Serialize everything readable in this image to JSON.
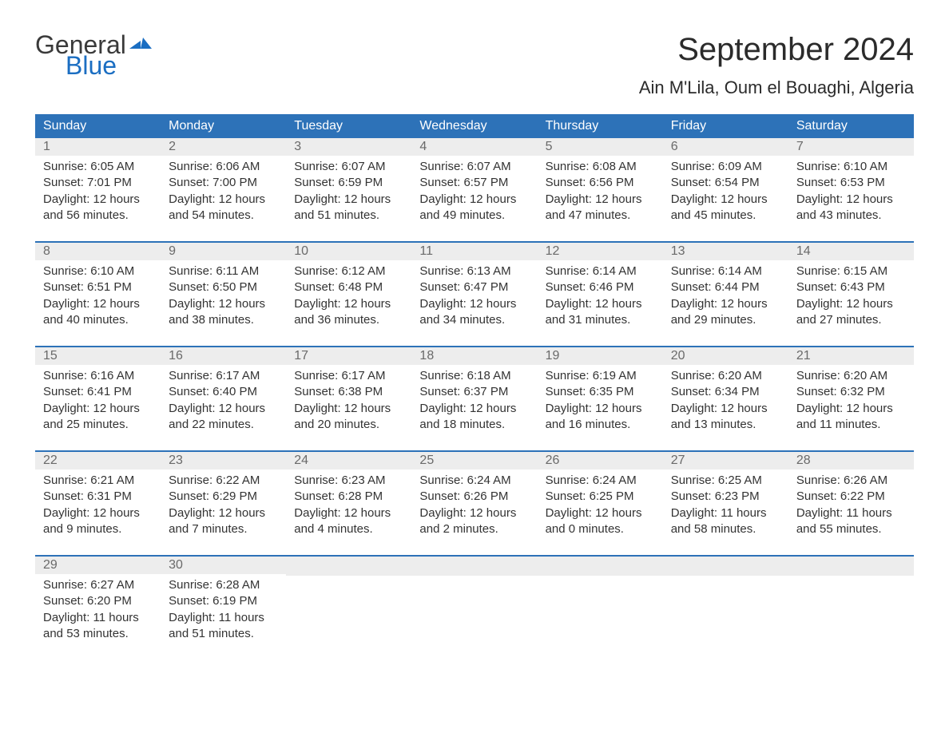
{
  "brand": {
    "word1": "General",
    "word2": "Blue",
    "color1": "#3a3a3a",
    "color2": "#1b6ec2"
  },
  "title": "September 2024",
  "location": "Ain M'Lila, Oum el Bouaghi, Algeria",
  "style": {
    "header_bg": "#2d72b8",
    "header_text": "#ffffff",
    "daynum_bg": "#ededed",
    "daynum_text": "#6a6a6a",
    "body_text": "#333333",
    "separator": "#2d72b8",
    "page_bg": "#ffffff",
    "font_family": "Arial",
    "title_fontsize": 40,
    "location_fontsize": 22,
    "header_fontsize": 16,
    "body_fontsize": 15
  },
  "days_of_week": [
    "Sunday",
    "Monday",
    "Tuesday",
    "Wednesday",
    "Thursday",
    "Friday",
    "Saturday"
  ],
  "weeks": [
    [
      {
        "num": "1",
        "sunrise": "Sunrise: 6:05 AM",
        "sunset": "Sunset: 7:01 PM",
        "day1": "Daylight: 12 hours",
        "day2": "and 56 minutes."
      },
      {
        "num": "2",
        "sunrise": "Sunrise: 6:06 AM",
        "sunset": "Sunset: 7:00 PM",
        "day1": "Daylight: 12 hours",
        "day2": "and 54 minutes."
      },
      {
        "num": "3",
        "sunrise": "Sunrise: 6:07 AM",
        "sunset": "Sunset: 6:59 PM",
        "day1": "Daylight: 12 hours",
        "day2": "and 51 minutes."
      },
      {
        "num": "4",
        "sunrise": "Sunrise: 6:07 AM",
        "sunset": "Sunset: 6:57 PM",
        "day1": "Daylight: 12 hours",
        "day2": "and 49 minutes."
      },
      {
        "num": "5",
        "sunrise": "Sunrise: 6:08 AM",
        "sunset": "Sunset: 6:56 PM",
        "day1": "Daylight: 12 hours",
        "day2": "and 47 minutes."
      },
      {
        "num": "6",
        "sunrise": "Sunrise: 6:09 AM",
        "sunset": "Sunset: 6:54 PM",
        "day1": "Daylight: 12 hours",
        "day2": "and 45 minutes."
      },
      {
        "num": "7",
        "sunrise": "Sunrise: 6:10 AM",
        "sunset": "Sunset: 6:53 PM",
        "day1": "Daylight: 12 hours",
        "day2": "and 43 minutes."
      }
    ],
    [
      {
        "num": "8",
        "sunrise": "Sunrise: 6:10 AM",
        "sunset": "Sunset: 6:51 PM",
        "day1": "Daylight: 12 hours",
        "day2": "and 40 minutes."
      },
      {
        "num": "9",
        "sunrise": "Sunrise: 6:11 AM",
        "sunset": "Sunset: 6:50 PM",
        "day1": "Daylight: 12 hours",
        "day2": "and 38 minutes."
      },
      {
        "num": "10",
        "sunrise": "Sunrise: 6:12 AM",
        "sunset": "Sunset: 6:48 PM",
        "day1": "Daylight: 12 hours",
        "day2": "and 36 minutes."
      },
      {
        "num": "11",
        "sunrise": "Sunrise: 6:13 AM",
        "sunset": "Sunset: 6:47 PM",
        "day1": "Daylight: 12 hours",
        "day2": "and 34 minutes."
      },
      {
        "num": "12",
        "sunrise": "Sunrise: 6:14 AM",
        "sunset": "Sunset: 6:46 PM",
        "day1": "Daylight: 12 hours",
        "day2": "and 31 minutes."
      },
      {
        "num": "13",
        "sunrise": "Sunrise: 6:14 AM",
        "sunset": "Sunset: 6:44 PM",
        "day1": "Daylight: 12 hours",
        "day2": "and 29 minutes."
      },
      {
        "num": "14",
        "sunrise": "Sunrise: 6:15 AM",
        "sunset": "Sunset: 6:43 PM",
        "day1": "Daylight: 12 hours",
        "day2": "and 27 minutes."
      }
    ],
    [
      {
        "num": "15",
        "sunrise": "Sunrise: 6:16 AM",
        "sunset": "Sunset: 6:41 PM",
        "day1": "Daylight: 12 hours",
        "day2": "and 25 minutes."
      },
      {
        "num": "16",
        "sunrise": "Sunrise: 6:17 AM",
        "sunset": "Sunset: 6:40 PM",
        "day1": "Daylight: 12 hours",
        "day2": "and 22 minutes."
      },
      {
        "num": "17",
        "sunrise": "Sunrise: 6:17 AM",
        "sunset": "Sunset: 6:38 PM",
        "day1": "Daylight: 12 hours",
        "day2": "and 20 minutes."
      },
      {
        "num": "18",
        "sunrise": "Sunrise: 6:18 AM",
        "sunset": "Sunset: 6:37 PM",
        "day1": "Daylight: 12 hours",
        "day2": "and 18 minutes."
      },
      {
        "num": "19",
        "sunrise": "Sunrise: 6:19 AM",
        "sunset": "Sunset: 6:35 PM",
        "day1": "Daylight: 12 hours",
        "day2": "and 16 minutes."
      },
      {
        "num": "20",
        "sunrise": "Sunrise: 6:20 AM",
        "sunset": "Sunset: 6:34 PM",
        "day1": "Daylight: 12 hours",
        "day2": "and 13 minutes."
      },
      {
        "num": "21",
        "sunrise": "Sunrise: 6:20 AM",
        "sunset": "Sunset: 6:32 PM",
        "day1": "Daylight: 12 hours",
        "day2": "and 11 minutes."
      }
    ],
    [
      {
        "num": "22",
        "sunrise": "Sunrise: 6:21 AM",
        "sunset": "Sunset: 6:31 PM",
        "day1": "Daylight: 12 hours",
        "day2": "and 9 minutes."
      },
      {
        "num": "23",
        "sunrise": "Sunrise: 6:22 AM",
        "sunset": "Sunset: 6:29 PM",
        "day1": "Daylight: 12 hours",
        "day2": "and 7 minutes."
      },
      {
        "num": "24",
        "sunrise": "Sunrise: 6:23 AM",
        "sunset": "Sunset: 6:28 PM",
        "day1": "Daylight: 12 hours",
        "day2": "and 4 minutes."
      },
      {
        "num": "25",
        "sunrise": "Sunrise: 6:24 AM",
        "sunset": "Sunset: 6:26 PM",
        "day1": "Daylight: 12 hours",
        "day2": "and 2 minutes."
      },
      {
        "num": "26",
        "sunrise": "Sunrise: 6:24 AM",
        "sunset": "Sunset: 6:25 PM",
        "day1": "Daylight: 12 hours",
        "day2": "and 0 minutes."
      },
      {
        "num": "27",
        "sunrise": "Sunrise: 6:25 AM",
        "sunset": "Sunset: 6:23 PM",
        "day1": "Daylight: 11 hours",
        "day2": "and 58 minutes."
      },
      {
        "num": "28",
        "sunrise": "Sunrise: 6:26 AM",
        "sunset": "Sunset: 6:22 PM",
        "day1": "Daylight: 11 hours",
        "day2": "and 55 minutes."
      }
    ],
    [
      {
        "num": "29",
        "sunrise": "Sunrise: 6:27 AM",
        "sunset": "Sunset: 6:20 PM",
        "day1": "Daylight: 11 hours",
        "day2": "and 53 minutes."
      },
      {
        "num": "30",
        "sunrise": "Sunrise: 6:28 AM",
        "sunset": "Sunset: 6:19 PM",
        "day1": "Daylight: 11 hours",
        "day2": "and 51 minutes."
      },
      null,
      null,
      null,
      null,
      null
    ]
  ]
}
